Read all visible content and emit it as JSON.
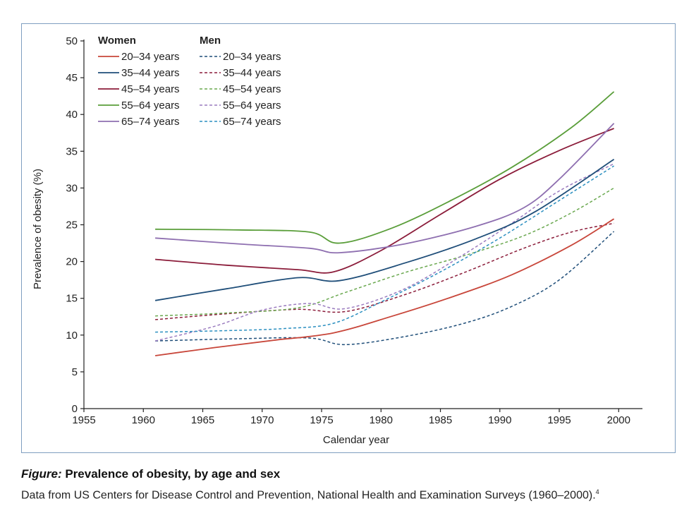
{
  "chart_data": {
    "type": "line",
    "xlabel": "Calendar year",
    "ylabel": "Prevalence of obesity (%)",
    "xlim": [
      1955,
      2002
    ],
    "ylim": [
      0,
      50
    ],
    "x_ticks": [
      "1955",
      "1960",
      "1965",
      "1970",
      "1975",
      "1980",
      "1985",
      "1990",
      "1995",
      "2000"
    ],
    "y_ticks": [
      "0",
      "5",
      "10",
      "15",
      "20",
      "25",
      "30",
      "35",
      "40",
      "45",
      "50"
    ],
    "grid": false,
    "legend": {
      "placement": "top-left",
      "groups": [
        {
          "title": "Women",
          "style": "solid",
          "entries": [
            "20–34 years",
            "35–44 years",
            "45–54 years",
            "55–64 years",
            "65–74 years"
          ]
        },
        {
          "title": "Men",
          "style": "dashed",
          "entries": [
            "20–34 years",
            "35–44 years",
            "45–54 years",
            "55–64 years",
            "65–74 years"
          ]
        }
      ]
    },
    "series": [
      {
        "group": "Women",
        "name": "20–34 years",
        "color": "#c8463a",
        "dash": false,
        "points": [
          [
            1961,
            7.2
          ],
          [
            1966,
            8.3
          ],
          [
            1971,
            9.3
          ],
          [
            1976,
            10.3
          ],
          [
            1981,
            12.6
          ],
          [
            1986,
            15.2
          ],
          [
            1991,
            18.2
          ],
          [
            1996,
            22.2
          ],
          [
            1999.6,
            25.8
          ]
        ]
      },
      {
        "group": "Women",
        "name": "35–44 years",
        "color": "#1f4e79",
        "dash": false,
        "points": [
          [
            1961,
            14.7
          ],
          [
            1967,
            16.3
          ],
          [
            1973,
            17.8
          ],
          [
            1976.5,
            17.4
          ],
          [
            1982,
            19.8
          ],
          [
            1988,
            23.1
          ],
          [
            1993,
            26.8
          ],
          [
            1999.6,
            33.9
          ]
        ]
      },
      {
        "group": "Women",
        "name": "45–54 years",
        "color": "#8b1c3a",
        "dash": false,
        "points": [
          [
            1961,
            20.3
          ],
          [
            1967,
            19.5
          ],
          [
            1973,
            18.9
          ],
          [
            1976,
            18.6
          ],
          [
            1980,
            21.5
          ],
          [
            1985,
            26.4
          ],
          [
            1990,
            31.2
          ],
          [
            1995,
            35.1
          ],
          [
            1999.6,
            38.1
          ]
        ]
      },
      {
        "group": "Women",
        "name": "55–64 years",
        "color": "#5a9e3a",
        "dash": false,
        "points": [
          [
            1961,
            24.4
          ],
          [
            1968,
            24.3
          ],
          [
            1974,
            24.0
          ],
          [
            1976.5,
            22.5
          ],
          [
            1981,
            24.6
          ],
          [
            1986,
            28.4
          ],
          [
            1991,
            32.8
          ],
          [
            1996,
            38.2
          ],
          [
            1999.6,
            43.1
          ]
        ]
      },
      {
        "group": "Women",
        "name": "65–74 years",
        "color": "#8e6fb0",
        "dash": false,
        "points": [
          [
            1961,
            23.2
          ],
          [
            1968,
            22.4
          ],
          [
            1974,
            21.8
          ],
          [
            1976.5,
            21.2
          ],
          [
            1982,
            22.4
          ],
          [
            1988,
            24.8
          ],
          [
            1992,
            27.3
          ],
          [
            1995,
            31.2
          ],
          [
            1999.6,
            38.8
          ]
        ]
      },
      {
        "group": "Men",
        "name": "20–34 years",
        "color": "#1f4e79",
        "dash": true,
        "points": [
          [
            1961,
            9.2
          ],
          [
            1968,
            9.5
          ],
          [
            1974,
            9.6
          ],
          [
            1977,
            8.7
          ],
          [
            1982,
            9.8
          ],
          [
            1987,
            11.6
          ],
          [
            1991,
            13.9
          ],
          [
            1995,
            17.5
          ],
          [
            1999.6,
            24.1
          ]
        ]
      },
      {
        "group": "Men",
        "name": "35–44 years",
        "color": "#8b1c3a",
        "dash": true,
        "points": [
          [
            1961,
            12.1
          ],
          [
            1967,
            12.9
          ],
          [
            1973,
            13.5
          ],
          [
            1977,
            13.2
          ],
          [
            1982,
            15.5
          ],
          [
            1987,
            18.5
          ],
          [
            1992,
            21.8
          ],
          [
            1996,
            24.0
          ],
          [
            1999.6,
            25.2
          ]
        ]
      },
      {
        "group": "Men",
        "name": "45–54 years",
        "color": "#6aa84f",
        "dash": true,
        "points": [
          [
            1961,
            12.6
          ],
          [
            1967,
            13.0
          ],
          [
            1973,
            13.7
          ],
          [
            1977,
            15.8
          ],
          [
            1982,
            18.5
          ],
          [
            1987,
            20.8
          ],
          [
            1992,
            23.5
          ],
          [
            1996,
            26.6
          ],
          [
            1999.6,
            30.0
          ]
        ]
      },
      {
        "group": "Men",
        "name": "55–64 years",
        "color": "#9a7bbf",
        "dash": true,
        "points": [
          [
            1961,
            9.2
          ],
          [
            1966,
            11.2
          ],
          [
            1970,
            13.4
          ],
          [
            1974,
            14.3
          ],
          [
            1977,
            13.6
          ],
          [
            1982,
            16.3
          ],
          [
            1987,
            21.0
          ],
          [
            1991,
            25.2
          ],
          [
            1995,
            29.6
          ],
          [
            1999.6,
            33.3
          ]
        ]
      },
      {
        "group": "Men",
        "name": "65–74 years",
        "color": "#2b8fc0",
        "dash": true,
        "points": [
          [
            1961,
            10.4
          ],
          [
            1967,
            10.6
          ],
          [
            1972,
            10.9
          ],
          [
            1976,
            11.6
          ],
          [
            1980,
            14.5
          ],
          [
            1985,
            18.6
          ],
          [
            1990,
            23.2
          ],
          [
            1995,
            28.3
          ],
          [
            1999.6,
            33.0
          ]
        ]
      }
    ]
  },
  "caption": {
    "figure_label": "Figure:",
    "title": " Prevalence of obesity, by age and sex",
    "source": "Data from US Centers for Disease Control and Prevention, National Health and Examination Surveys (1960–2000).",
    "reference": "4"
  }
}
